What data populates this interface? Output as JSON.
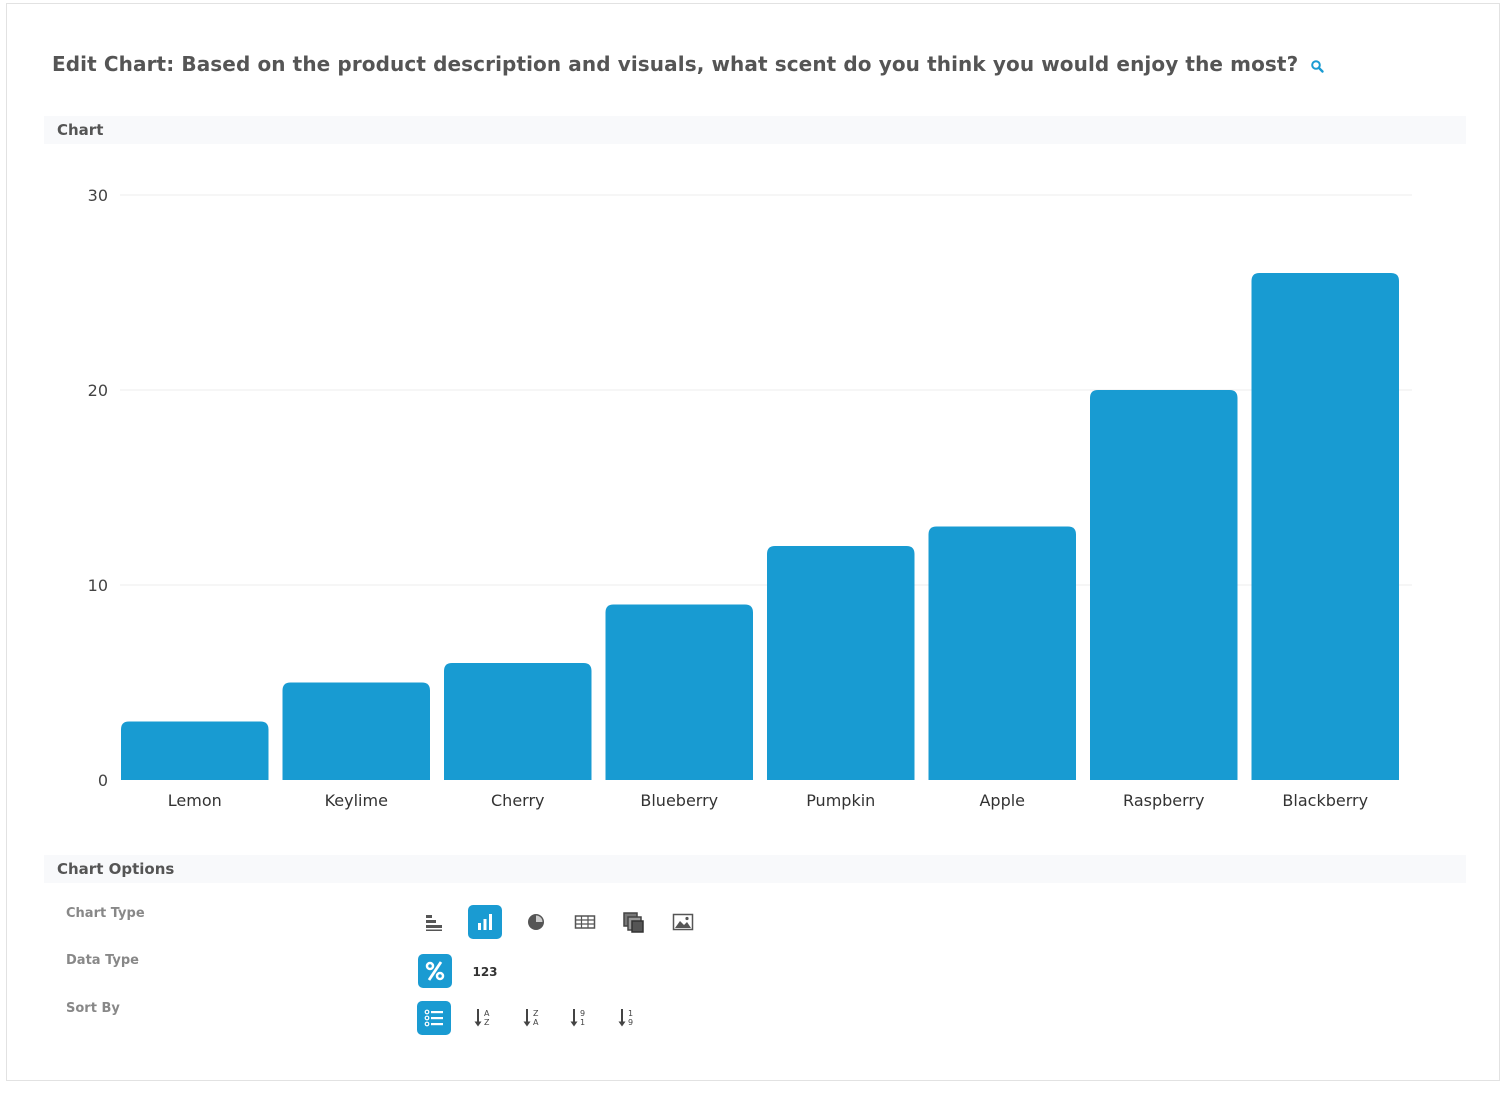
{
  "header": {
    "title": "Edit Chart: Based on the product description and visuals, what scent do you think you would enjoy the most?"
  },
  "sections": {
    "chart": "Chart",
    "chart_options": "Chart Options"
  },
  "options": {
    "chart_type_label": "Chart Type",
    "data_type_label": "Data Type",
    "sort_by_label": "Sort By",
    "chart_type_buttons": [
      "horizontal-bar-icon",
      "vertical-bar-icon",
      "pie-icon",
      "table-icon",
      "stacked-icon",
      "image-icon"
    ],
    "chart_type_selected": "vertical-bar-icon",
    "data_type_buttons": [
      "percent-icon",
      "number-icon"
    ],
    "data_type_number_text": "123",
    "data_type_selected": "percent-icon",
    "sort_buttons": [
      "list-order-icon",
      "sort-a-z-icon",
      "sort-z-a-icon",
      "sort-9-1-icon",
      "sort-1-9-icon"
    ],
    "sort_selected": "list-order-icon"
  },
  "colors": {
    "accent": "#1a9bd2",
    "bar": "#189bd2"
  },
  "chart_data": {
    "type": "bar",
    "categories": [
      "Lemon",
      "Keylime",
      "Cherry",
      "Blueberry",
      "Pumpkin",
      "Apple",
      "Raspberry",
      "Blackberry"
    ],
    "values": [
      3,
      5,
      6,
      9,
      12,
      13,
      20,
      26
    ],
    "yticks": [
      0,
      10,
      20,
      30
    ],
    "ylim": [
      0,
      30
    ],
    "grid": true
  }
}
